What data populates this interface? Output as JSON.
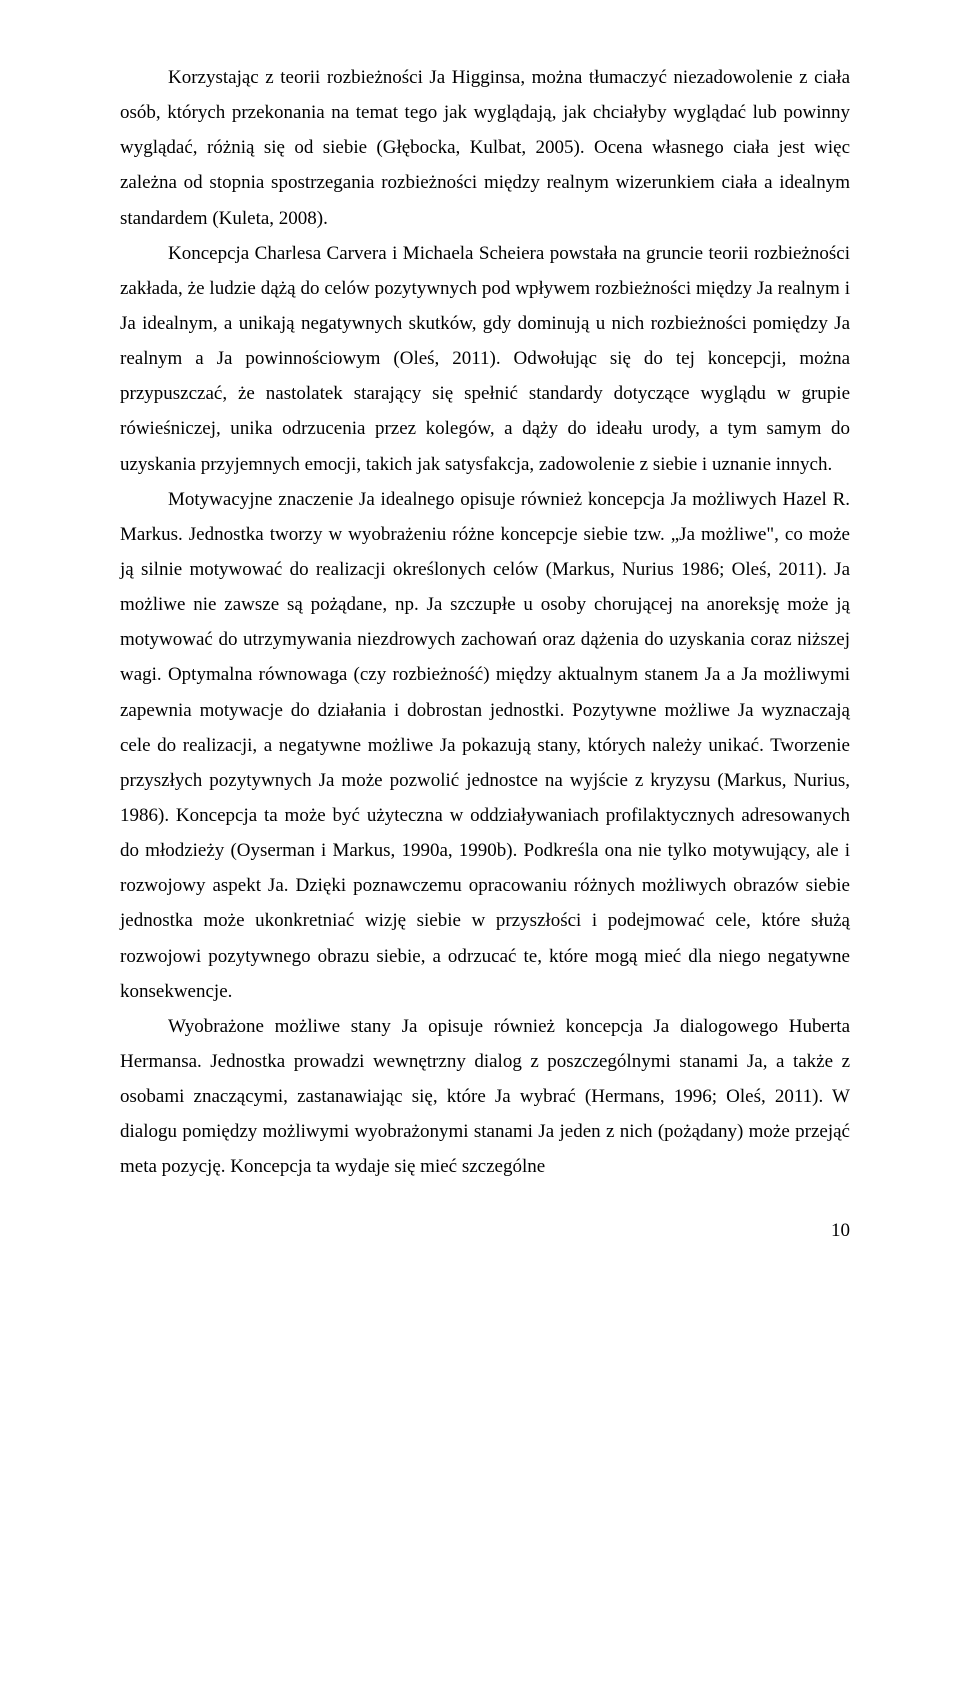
{
  "page": {
    "number": "10",
    "paragraphs": [
      "Korzystając z teorii rozbieżności Ja Higginsa, można tłumaczyć niezadowolenie z ciała osób, których przekonania na temat tego jak wyglądają, jak chciałyby wyglądać lub powinny wyglądać, różnią się od siebie (Głębocka, Kulbat, 2005). Ocena własnego ciała jest więc zależna od stopnia spostrzegania rozbieżności między realnym wizerunkiem ciała a idealnym standardem (Kuleta, 2008).",
      "Koncepcja Charlesa Carvera i Michaela Scheiera powstała na gruncie teorii rozbieżności zakłada, że ludzie dążą do celów pozytywnych pod wpływem rozbieżności między Ja realnym i Ja idealnym, a unikają negatywnych skutków, gdy dominują u nich rozbieżności pomiędzy Ja realnym a Ja powinnościowym (Oleś, 2011). Odwołując się do tej koncepcji, można przypuszczać, że nastolatek starający się spełnić standardy dotyczące wyglądu w grupie rówieśniczej, unika odrzucenia przez kolegów, a dąży do ideału urody, a tym samym do uzyskania przyjemnych emocji, takich jak satysfakcja, zadowolenie z siebie i uznanie innych.",
      "Motywacyjne znaczenie Ja idealnego opisuje również koncepcja Ja możliwych Hazel R. Markus. Jednostka tworzy w wyobrażeniu różne koncepcje siebie tzw. „Ja możliwe\", co może ją silnie motywować do realizacji określonych celów (Markus, Nurius 1986; Oleś, 2011). Ja możliwe nie zawsze są pożądane, np. Ja szczupłe u osoby chorującej na anoreksję może ją motywować do utrzymywania niezdrowych zachowań oraz dążenia do uzyskania coraz niższej wagi. Optymalna równowaga (czy rozbieżność) między aktualnym stanem Ja a Ja możliwymi zapewnia motywacje do działania i dobrostan jednostki. Pozytywne możliwe Ja wyznaczają cele do realizacji, a negatywne możliwe Ja pokazują stany, których należy unikać. Tworzenie przyszłych pozytywnych Ja może pozwolić jednostce na wyjście z kryzysu (Markus, Nurius, 1986). Koncepcja ta może być użyteczna w oddziaływaniach profilaktycznych adresowanych do młodzieży (Oyserman i Markus, 1990a, 1990b). Podkreśla ona nie tylko motywujący, ale i rozwojowy aspekt Ja. Dzięki poznawczemu opracowaniu różnych możliwych obrazów siebie jednostka może ukonkretniać wizję siebie w przyszłości i podejmować cele, które służą rozwojowi pozytywnego obrazu siebie, a odrzucać te, które mogą mieć dla niego negatywne konsekwencje.",
      "Wyobrażone możliwe stany Ja opisuje również koncepcja Ja dialogowego Huberta Hermansa. Jednostka prowadzi wewnętrzny dialog z poszczególnymi stanami Ja, a także z osobami znaczącymi, zastanawiając się, które Ja wybrać (Hermans, 1996; Oleś, 2011). W dialogu pomiędzy możliwymi wyobrażonymi stanami Ja jeden z nich (pożądany) może przejąć meta pozycję. Koncepcja ta wydaje się mieć szczególne"
    ]
  }
}
